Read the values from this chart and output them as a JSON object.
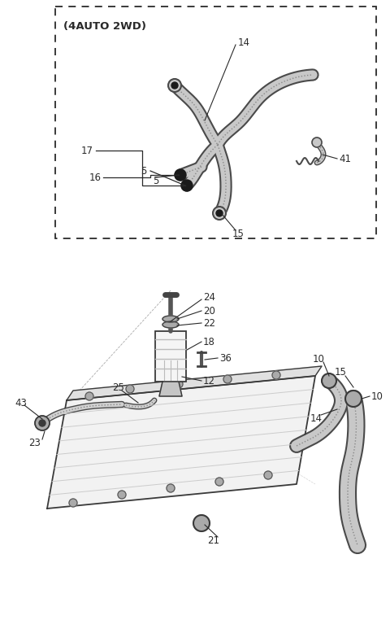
{
  "bg_color": "#ffffff",
  "line_color": "#2a2a2a",
  "fig_width": 4.8,
  "fig_height": 7.62,
  "dpi": 100
}
